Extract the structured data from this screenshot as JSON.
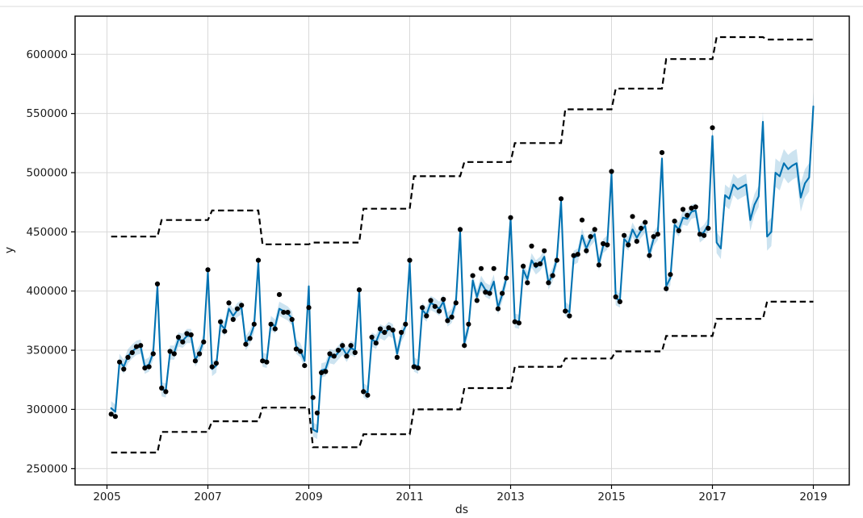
{
  "figure": {
    "kind": "prophet-forecast-plot",
    "background": "#ffffff"
  },
  "chart_data": {
    "type": "line",
    "title": "",
    "xlabel": "ds",
    "ylabel": "y",
    "grid": true,
    "legend": "none",
    "xlim": [
      2004.37,
      2019.71
    ],
    "ylim": [
      236000,
      632000
    ],
    "x_ticks": [
      2005,
      2007,
      2009,
      2011,
      2013,
      2015,
      2017,
      2019
    ],
    "x_tick_labels": [
      "2005",
      "2007",
      "2009",
      "2011",
      "2013",
      "2015",
      "2017",
      "2019"
    ],
    "y_ticks": [
      250000,
      300000,
      350000,
      400000,
      450000,
      500000,
      550000,
      600000
    ],
    "y_tick_labels": [
      "250000",
      "300000",
      "350000",
      "400000",
      "450000",
      "500000",
      "550000",
      "600000"
    ],
    "start_month": "2005-01",
    "history_end_month": "2016-12",
    "forecast_end_month": "2018-12",
    "series": {
      "actual_name": "observed-points",
      "yhat_name": "forecast-line",
      "actual": [
        296000,
        294000,
        340000,
        334000,
        344000,
        348000,
        353000,
        354000,
        335000,
        336000,
        347000,
        406000,
        318000,
        315000,
        349000,
        347000,
        361000,
        357000,
        364000,
        363000,
        341000,
        347000,
        357000,
        418000,
        336000,
        339000,
        374000,
        366000,
        390000,
        376000,
        385000,
        388000,
        355000,
        360000,
        372000,
        426000,
        341000,
        340000,
        372000,
        368000,
        397000,
        382000,
        382000,
        376000,
        351000,
        349000,
        337000,
        386000,
        310000,
        297000,
        331000,
        332000,
        347000,
        345000,
        350000,
        354000,
        345000,
        354000,
        348000,
        401000,
        315000,
        312000,
        361000,
        356000,
        368000,
        365000,
        369000,
        367000,
        344000,
        365000,
        372000,
        426000,
        336000,
        335000,
        386000,
        379000,
        392000,
        387000,
        383000,
        393000,
        375000,
        378000,
        390000,
        452000,
        354000,
        372000,
        413000,
        392000,
        419000,
        399000,
        398000,
        419000,
        385000,
        398000,
        411000,
        462000,
        374000,
        373000,
        421000,
        407000,
        438000,
        422000,
        423000,
        434000,
        407000,
        413000,
        426000,
        478000,
        383000,
        379000,
        430000,
        431000,
        460000,
        434000,
        446000,
        452000,
        422000,
        440000,
        439000,
        501000,
        395000,
        391000,
        447000,
        439000,
        463000,
        442000,
        453000,
        458000,
        430000,
        446000,
        448000,
        517000,
        402000,
        414000,
        459000,
        451000,
        469000,
        464000,
        470000,
        471000,
        448000,
        447000,
        453000,
        538000
      ],
      "yhat": [
        301000,
        298000,
        341000,
        336000,
        345000,
        349000,
        352000,
        353000,
        336000,
        338000,
        348000,
        404000,
        317000,
        316000,
        348000,
        348000,
        359000,
        358000,
        362000,
        362000,
        342000,
        348000,
        358000,
        416000,
        334000,
        337000,
        372000,
        368000,
        385000,
        379000,
        384000,
        386000,
        356000,
        361000,
        371000,
        424000,
        342000,
        341000,
        373000,
        370000,
        385000,
        383000,
        381000,
        377000,
        353000,
        350000,
        341000,
        404000,
        283000,
        281000,
        333000,
        334000,
        345000,
        344000,
        348000,
        352000,
        346000,
        352000,
        350000,
        400000,
        316000,
        314000,
        359000,
        357000,
        366000,
        364000,
        368000,
        366000,
        347000,
        363000,
        370000,
        424000,
        338000,
        336000,
        384000,
        380000,
        390000,
        388000,
        385000,
        391000,
        376000,
        379000,
        391000,
        450000,
        356000,
        370000,
        409000,
        395000,
        407000,
        401000,
        399000,
        408000,
        386000,
        397000,
        411000,
        461000,
        375000,
        374000,
        418000,
        410000,
        426000,
        420000,
        423000,
        429000,
        407000,
        414000,
        427000,
        476000,
        385000,
        382000,
        428000,
        430000,
        447000,
        436000,
        444000,
        448000,
        423000,
        438000,
        441000,
        499000,
        394000,
        392000,
        444000,
        440000,
        452000,
        445000,
        451000,
        455000,
        431000,
        444000,
        449000,
        512000,
        404000,
        411000,
        456000,
        452000,
        462000,
        461000,
        467000,
        468000,
        447000,
        450000,
        456000,
        531000,
        441000,
        436000,
        481000,
        478000,
        490000,
        486000,
        488000,
        490000,
        460000,
        473000,
        480000,
        543000,
        446000,
        450000,
        500000,
        497000,
        508000,
        503000,
        506000,
        508000,
        479000,
        491000,
        496000,
        556000
      ],
      "band_halfwidth_by_year": {
        "2005": 6000,
        "2006": 6000,
        "2007": 6000,
        "2008": 6000,
        "2009": 6000,
        "2010": 6000,
        "2011": 6000,
        "2012": 6000,
        "2013": 6000,
        "2014": 6000,
        "2015": 6000,
        "2016": 6000,
        "2017": 9000,
        "2018": 12000
      },
      "cap_by_year": {
        "2005": 446000,
        "2006": 460000,
        "2007": 468000,
        "2008": 439500,
        "2009": 441000,
        "2010": 469500,
        "2011": 497000,
        "2012": 509000,
        "2013": 525000,
        "2014": 553500,
        "2015": 571000,
        "2016": 596000,
        "2017": 614500,
        "2018": 612500
      },
      "floor_by_year": {
        "2005": 263500,
        "2006": 281000,
        "2007": 290000,
        "2008": 301500,
        "2009": 268000,
        "2010": 279000,
        "2011": 300000,
        "2012": 318000,
        "2013": 336000,
        "2014": 343000,
        "2015": 349000,
        "2016": 362000,
        "2017": 376500,
        "2018": 391000
      }
    },
    "colors": {
      "forecast_line": "#0072B2",
      "uncertainty_band": "rgba(0,114,178,0.2)",
      "observed_points": "#000000",
      "cap_floor_line": "#000000",
      "grid": "#d9d9d9",
      "spine": "#000000",
      "divider": "#e7e7e7"
    }
  }
}
